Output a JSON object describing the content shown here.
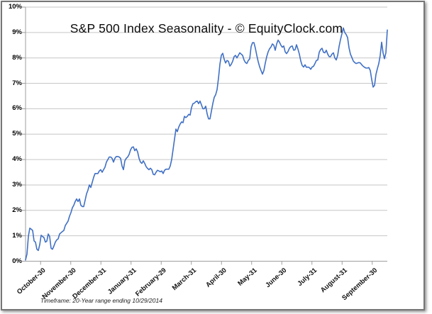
{
  "chart_data": {
    "type": "line",
    "title": "S&P 500 Index Seasonality - © EquityClock.com",
    "footnote": "Timeframe: 20-Year range ending 10/29/2014",
    "xlabel": "",
    "ylabel": "",
    "ylim": [
      0,
      10
    ],
    "grid": "horizontal",
    "legend": "none",
    "y_tick_labels": [
      "0%",
      "1%",
      "2%",
      "3%",
      "4%",
      "5%",
      "6%",
      "7%",
      "8%",
      "9%",
      "10%"
    ],
    "x_tick_labels": [
      "October-30",
      "November-30",
      "December-31",
      "January-31",
      "February-29",
      "March-31",
      "April-30",
      "May-31",
      "June-30",
      "July-31",
      "August-31",
      "September-30"
    ],
    "series": [
      {
        "name": "S&P 500 Index Seasonality",
        "color": "#4070c4",
        "unit": "%",
        "values": [
          0.05,
          0.28,
          0.98,
          1.3,
          1.26,
          1.21,
          0.8,
          0.75,
          0.47,
          0.42,
          0.65,
          1.02,
          0.97,
          0.93,
          0.75,
          0.79,
          1.07,
          0.97,
          0.51,
          0.47,
          0.6,
          0.75,
          0.84,
          0.88,
          1.07,
          1.12,
          1.17,
          1.21,
          1.4,
          1.49,
          1.58,
          1.77,
          1.91,
          2.1,
          2.2,
          2.35,
          2.45,
          2.35,
          2.45,
          2.2,
          2.15,
          2.15,
          2.4,
          2.65,
          2.8,
          3.0,
          2.9,
          3.1,
          3.3,
          3.45,
          3.45,
          3.45,
          3.55,
          3.6,
          3.5,
          3.6,
          3.7,
          3.9,
          4.0,
          4.1,
          4.1,
          4.05,
          3.9,
          4.05,
          4.12,
          4.12,
          4.1,
          4.05,
          3.75,
          3.6,
          3.95,
          4.05,
          4.1,
          4.2,
          4.38,
          4.48,
          4.5,
          4.35,
          4.42,
          4.3,
          4.05,
          3.9,
          3.85,
          3.95,
          3.85,
          3.72,
          3.65,
          3.6,
          3.66,
          3.6,
          3.42,
          3.4,
          3.5,
          3.58,
          3.55,
          3.52,
          3.55,
          3.45,
          3.58,
          3.62,
          3.62,
          3.62,
          3.75,
          4.0,
          4.4,
          4.8,
          5.2,
          5.1,
          5.28,
          5.4,
          5.48,
          5.45,
          5.7,
          5.65,
          5.7,
          5.78,
          5.75,
          6.05,
          6.2,
          6.22,
          6.28,
          6.3,
          6.2,
          6.3,
          6.15,
          6.0,
          6.0,
          6.1,
          5.8,
          5.6,
          5.6,
          5.9,
          6.2,
          6.45,
          6.55,
          6.75,
          7.2,
          7.75,
          8.1,
          8.18,
          7.95,
          7.8,
          7.9,
          7.87,
          7.68,
          7.75,
          7.87,
          8.05,
          8.1,
          8.0,
          8.1,
          8.2,
          8.15,
          8.1,
          7.92,
          7.82,
          7.78,
          7.9,
          7.96,
          8.45,
          8.6,
          8.6,
          8.38,
          8.1,
          7.85,
          7.65,
          7.5,
          7.36,
          7.5,
          7.8,
          8.05,
          8.24,
          8.36,
          8.43,
          8.55,
          8.5,
          8.3,
          8.55,
          8.7,
          8.62,
          8.5,
          8.42,
          8.47,
          8.24,
          8.17,
          8.25,
          8.38,
          8.45,
          8.47,
          8.3,
          8.32,
          8.52,
          8.35,
          8.15,
          7.88,
          7.7,
          7.64,
          7.73,
          7.63,
          7.64,
          7.62,
          7.55,
          7.64,
          7.67,
          7.78,
          7.9,
          7.92,
          8.22,
          8.33,
          8.38,
          8.22,
          8.2,
          8.3,
          8.15,
          8.05,
          8.05,
          8.15,
          8.2,
          8.0,
          7.92,
          8.1,
          8.45,
          8.72,
          8.95,
          9.18,
          9.0,
          8.92,
          8.8,
          8.4,
          8.15,
          8.02,
          7.88,
          7.82,
          7.78,
          7.8,
          7.82,
          7.8,
          7.73,
          7.67,
          7.63,
          7.6,
          7.6,
          7.62,
          7.5,
          7.15,
          6.85,
          6.92,
          7.35,
          7.58,
          7.78,
          8.1,
          8.62,
          8.2,
          7.97,
          8.2,
          9.1
        ]
      }
    ],
    "colors": {
      "line": "#4070c4",
      "gridline": "#c6c6c6",
      "axis": "#9e9e9e",
      "background": "#ffffff",
      "frame_border": "#767676"
    }
  }
}
